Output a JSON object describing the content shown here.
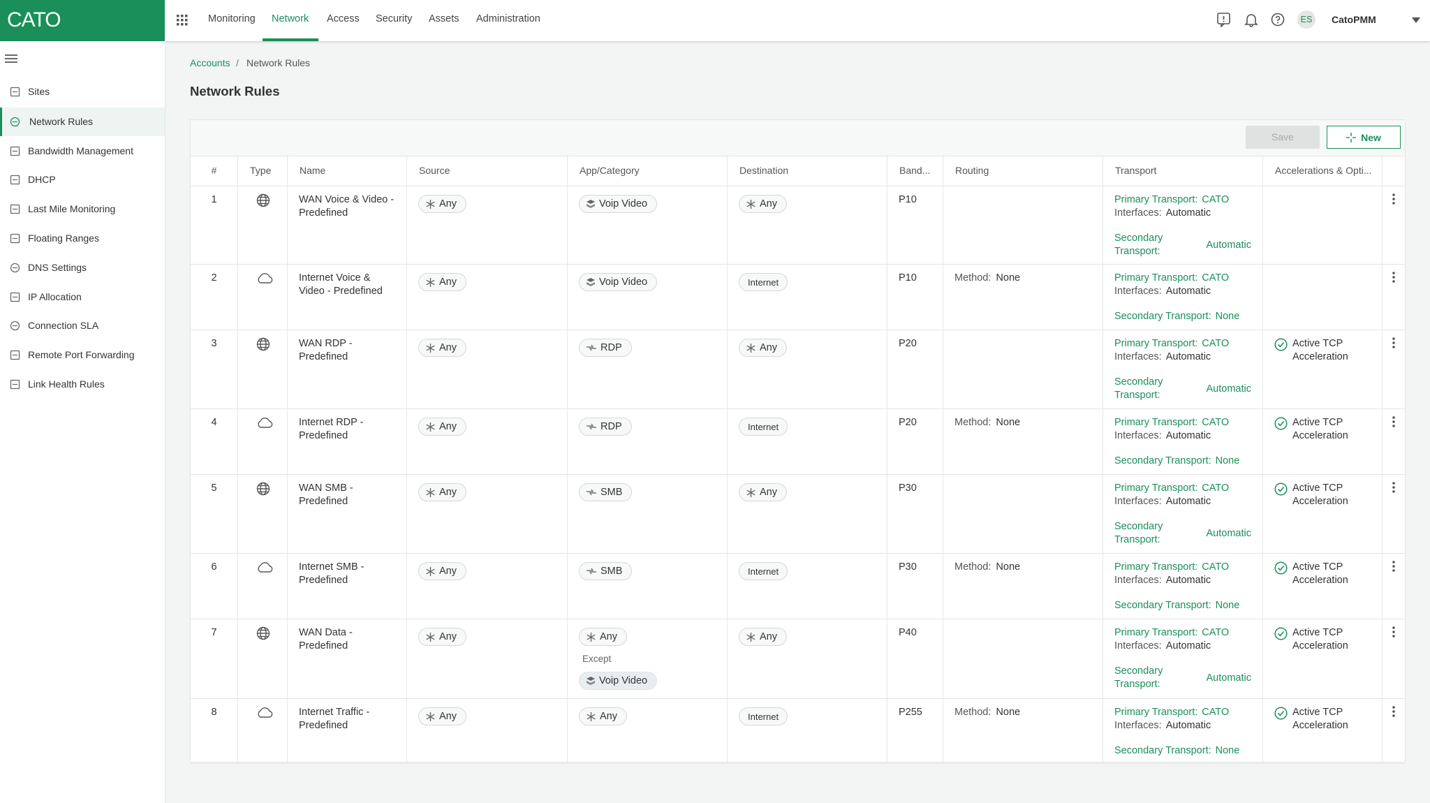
{
  "header": {
    "logo": "CATO",
    "nav": [
      "Monitoring",
      "Network",
      "Access",
      "Security",
      "Assets",
      "Administration"
    ],
    "active_nav": 1,
    "user_initials": "ES",
    "user": "CatoPMM"
  },
  "sidebar": {
    "items": [
      "Sites",
      "Network Rules",
      "Bandwidth Management",
      "DHCP",
      "Last Mile Monitoring",
      "Floating Ranges",
      "DNS Settings",
      "IP Allocation",
      "Connection SLA",
      "Remote Port Forwarding",
      "Link Health Rules"
    ],
    "active": 1
  },
  "breadcrumb": [
    "Accounts",
    "Network Rules"
  ],
  "title": "Network Rules",
  "toolbar": {
    "save": "Save",
    "new": "New"
  },
  "table": {
    "columns": [
      "#",
      "Type",
      "Name",
      "Source",
      "App/Category",
      "Destination",
      "Band...",
      "Routing",
      "Transport",
      "Accelerations & Opti..."
    ],
    "rows": [
      {
        "num": 1,
        "type": "wan",
        "name": "WAN Voice & Video - Predefined",
        "source": {
          "label": "Any",
          "icon": "any"
        },
        "app": [
          {
            "label": "Voip Video",
            "icon": "category"
          }
        ],
        "destination": {
          "label": "Any",
          "icon": "any"
        },
        "bandwidth": "P10",
        "transport": {
          "primary_label": "Primary Transport:",
          "primary": "CATO",
          "interfaces_label": "Interfaces:",
          "interfaces": "Automatic",
          "secondary_label": "Secondary Transport:",
          "secondary": "Automatic"
        }
      },
      {
        "num": 2,
        "type": "internet",
        "name": "Internet Voice & Video - Predefined",
        "source": {
          "label": "Any",
          "icon": "any"
        },
        "app": [
          {
            "label": "Voip Video",
            "icon": "category"
          }
        ],
        "destination": {
          "label": "Internet"
        },
        "bandwidth": "P10",
        "routing": {
          "label": "Method:",
          "value": "None"
        },
        "transport": {
          "primary_label": "Primary Transport:",
          "primary": "CATO",
          "interfaces_label": "Interfaces:",
          "interfaces": "Automatic",
          "secondary_label": "Secondary Transport:",
          "secondary": "None"
        }
      },
      {
        "num": 3,
        "type": "wan",
        "name": "WAN RDP - Predefined",
        "source": {
          "label": "Any",
          "icon": "any"
        },
        "app": [
          {
            "label": "RDP",
            "icon": "app"
          }
        ],
        "destination": {
          "label": "Any",
          "icon": "any"
        },
        "bandwidth": "P20",
        "transport": {
          "primary_label": "Primary Transport:",
          "primary": "CATO",
          "interfaces_label": "Interfaces:",
          "interfaces": "Automatic",
          "secondary_label": "Secondary Transport:",
          "secondary": "Automatic"
        },
        "acceleration": "Active TCP Acceleration"
      },
      {
        "num": 4,
        "type": "internet",
        "name": "Internet RDP - Predefined",
        "source": {
          "label": "Any",
          "icon": "any"
        },
        "app": [
          {
            "label": "RDP",
            "icon": "app"
          }
        ],
        "destination": {
          "label": "Internet"
        },
        "bandwidth": "P20",
        "routing": {
          "label": "Method:",
          "value": "None"
        },
        "transport": {
          "primary_label": "Primary Transport:",
          "primary": "CATO",
          "interfaces_label": "Interfaces:",
          "interfaces": "Automatic",
          "secondary_label": "Secondary Transport:",
          "secondary": "None"
        },
        "acceleration": "Active TCP Acceleration"
      },
      {
        "num": 5,
        "type": "wan",
        "name": "WAN SMB - Predefined",
        "source": {
          "label": "Any",
          "icon": "any"
        },
        "app": [
          {
            "label": "SMB",
            "icon": "app"
          }
        ],
        "destination": {
          "label": "Any",
          "icon": "any"
        },
        "bandwidth": "P30",
        "transport": {
          "primary_label": "Primary Transport:",
          "primary": "CATO",
          "interfaces_label": "Interfaces:",
          "interfaces": "Automatic",
          "secondary_label": "Secondary Transport:",
          "secondary": "Automatic"
        },
        "acceleration": "Active TCP Acceleration"
      },
      {
        "num": 6,
        "type": "internet",
        "name": "Internet SMB - Predefined",
        "source": {
          "label": "Any",
          "icon": "any"
        },
        "app": [
          {
            "label": "SMB",
            "icon": "app"
          }
        ],
        "destination": {
          "label": "Internet"
        },
        "bandwidth": "P30",
        "routing": {
          "label": "Method:",
          "value": "None"
        },
        "transport": {
          "primary_label": "Primary Transport:",
          "primary": "CATO",
          "interfaces_label": "Interfaces:",
          "interfaces": "Automatic",
          "secondary_label": "Secondary Transport:",
          "secondary": "None"
        },
        "acceleration": "Active TCP Acceleration"
      },
      {
        "num": 7,
        "type": "wan",
        "name": "WAN Data - Predefined",
        "source": {
          "label": "Any",
          "icon": "any"
        },
        "app": [
          {
            "label": "Any",
            "icon": "any"
          }
        ],
        "except_label": "Except",
        "except": [
          {
            "label": "Voip Video",
            "icon": "category"
          }
        ],
        "destination": {
          "label": "Any",
          "icon": "any"
        },
        "bandwidth": "P40",
        "transport": {
          "primary_label": "Primary Transport:",
          "primary": "CATO",
          "interfaces_label": "Interfaces:",
          "interfaces": "Automatic",
          "secondary_label": "Secondary Transport:",
          "secondary": "Automatic"
        },
        "acceleration": "Active TCP Acceleration"
      },
      {
        "num": 8,
        "type": "internet",
        "name": "Internet Traffic - Predefined",
        "source": {
          "label": "Any",
          "icon": "any"
        },
        "app": [
          {
            "label": "Any",
            "icon": "any"
          }
        ],
        "destination": {
          "label": "Internet"
        },
        "bandwidth": "P255",
        "routing": {
          "label": "Method:",
          "value": "None"
        },
        "transport": {
          "primary_label": "Primary Transport:",
          "primary": "CATO",
          "interfaces_label": "Interfaces:",
          "interfaces": "Automatic",
          "secondary_label": "Secondary Transport:",
          "secondary": "None"
        },
        "acceleration": "Active TCP Acceleration"
      }
    ]
  }
}
